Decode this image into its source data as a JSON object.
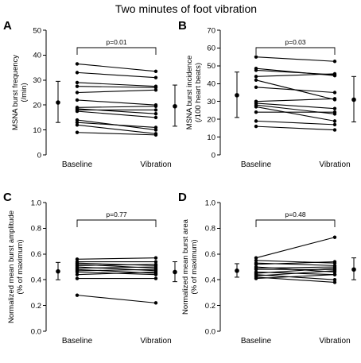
{
  "figure_title": "Two minutes of foot vibration",
  "chart_data": [
    {
      "panel": "A",
      "type": "scatter",
      "ylabel_lines": [
        "MSNA burst frequency",
        "(/min)"
      ],
      "categories": [
        "Baseline",
        "Vibration"
      ],
      "ylim": [
        0,
        50
      ],
      "yticks": [
        0,
        10,
        20,
        30,
        40,
        50
      ],
      "ytick_labels": [
        "0",
        "10",
        "20",
        "30",
        "40",
        "50"
      ],
      "pvalue": "p=0.01",
      "paired": [
        [
          36.5,
          33.5
        ],
        [
          33,
          31
        ],
        [
          29,
          27.5
        ],
        [
          27.5,
          27
        ],
        [
          25,
          26
        ],
        [
          22,
          20
        ],
        [
          19,
          19.5
        ],
        [
          18.5,
          16.5
        ],
        [
          18,
          18
        ],
        [
          17.5,
          15
        ],
        [
          14,
          10
        ],
        [
          13,
          11
        ],
        [
          12,
          8.5
        ],
        [
          9,
          8
        ]
      ],
      "summary": [
        {
          "mean": 21,
          "low": 13,
          "high": 29.5
        },
        {
          "mean": 19.5,
          "low": 11.5,
          "high": 28
        }
      ]
    },
    {
      "panel": "B",
      "type": "scatter",
      "ylabel_lines": [
        "MSNA burst incidence",
        "(/100 heart beats)"
      ],
      "categories": [
        "Baseline",
        "Vibration"
      ],
      "ylim": [
        0,
        70
      ],
      "yticks": [
        0,
        10,
        20,
        30,
        40,
        50,
        60,
        70
      ],
      "ytick_labels": [
        "0",
        "10",
        "20",
        "30",
        "40",
        "50",
        "60",
        "70"
      ],
      "pvalue": "p=0.03",
      "paired": [
        [
          55,
          52.5
        ],
        [
          48.5,
          44.5
        ],
        [
          47.5,
          45
        ],
        [
          44,
          45.5
        ],
        [
          42,
          31
        ],
        [
          38,
          35
        ],
        [
          30,
          31.5
        ],
        [
          29,
          26
        ],
        [
          28,
          23
        ],
        [
          27,
          19
        ],
        [
          24,
          24
        ],
        [
          19,
          17
        ],
        [
          16,
          14
        ]
      ],
      "summary": [
        {
          "mean": 33.5,
          "low": 21,
          "high": 46.5
        },
        {
          "mean": 31,
          "low": 18.5,
          "high": 44
        }
      ]
    },
    {
      "panel": "C",
      "type": "scatter",
      "ylabel_lines": [
        "Normalized mean burst amplitude",
        "(% of maximum)"
      ],
      "categories": [
        "Baseline",
        "Vibration"
      ],
      "ylim": [
        0,
        1.0
      ],
      "yticks": [
        0,
        0.2,
        0.4,
        0.6,
        0.8,
        1.0
      ],
      "ytick_labels": [
        "0.0",
        "0.2",
        "0.4",
        "0.6",
        "0.8",
        "1.0"
      ],
      "pvalue": "p=0.77",
      "paired": [
        [
          0.56,
          0.57
        ],
        [
          0.54,
          0.54
        ],
        [
          0.53,
          0.51
        ],
        [
          0.52,
          0.49
        ],
        [
          0.51,
          0.52
        ],
        [
          0.5,
          0.47
        ],
        [
          0.49,
          0.5
        ],
        [
          0.48,
          0.45
        ],
        [
          0.47,
          0.48
        ],
        [
          0.46,
          0.44
        ],
        [
          0.44,
          0.46
        ],
        [
          0.41,
          0.41
        ],
        [
          0.28,
          0.22
        ]
      ],
      "summary": [
        {
          "mean": 0.465,
          "low": 0.4,
          "high": 0.535
        },
        {
          "mean": 0.46,
          "low": 0.385,
          "high": 0.54
        }
      ]
    },
    {
      "panel": "D",
      "type": "scatter",
      "ylabel_lines": [
        "Normalized mean burst area",
        "(% of maximum)"
      ],
      "categories": [
        "Baseline",
        "Vibration"
      ],
      "ylim": [
        0,
        1.0
      ],
      "yticks": [
        0,
        0.2,
        0.4,
        0.6,
        0.8,
        1.0
      ],
      "ytick_labels": [
        "0.0",
        "0.2",
        "0.4",
        "0.6",
        "0.8",
        "1.0"
      ],
      "pvalue": "p=0.48",
      "paired": [
        [
          0.57,
          0.73
        ],
        [
          0.55,
          0.53
        ],
        [
          0.53,
          0.51
        ],
        [
          0.52,
          0.54
        ],
        [
          0.5,
          0.46
        ],
        [
          0.49,
          0.5
        ],
        [
          0.48,
          0.48
        ],
        [
          0.46,
          0.44
        ],
        [
          0.45,
          0.49
        ],
        [
          0.44,
          0.4
        ],
        [
          0.43,
          0.47
        ],
        [
          0.42,
          0.38
        ],
        [
          0.41,
          0.44
        ]
      ],
      "summary": [
        {
          "mean": 0.47,
          "low": 0.42,
          "high": 0.525
        },
        {
          "mean": 0.48,
          "low": 0.4,
          "high": 0.57
        }
      ]
    }
  ]
}
